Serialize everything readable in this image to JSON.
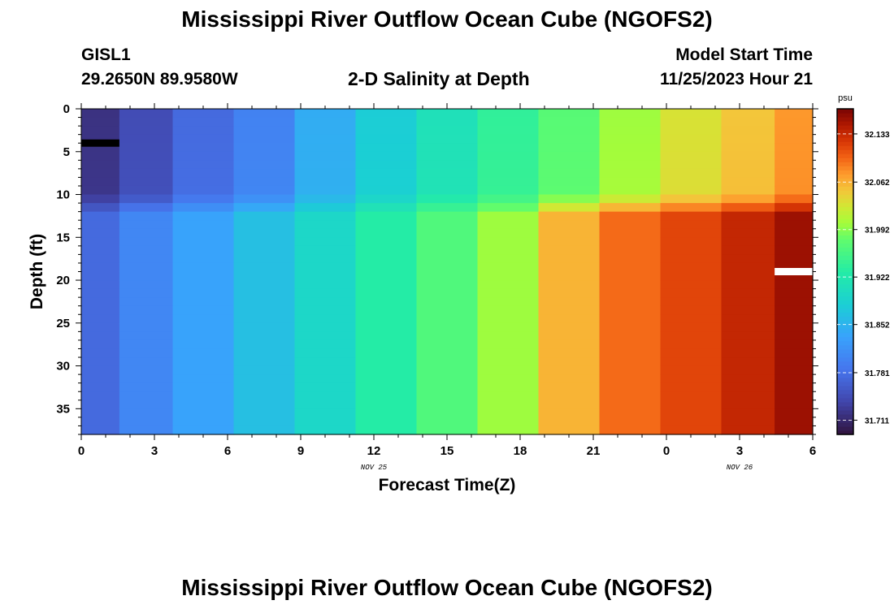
{
  "page": {
    "title": "Mississippi River Outflow Ocean Cube (NGOFS2)",
    "footer_title": "Mississippi River Outflow Ocean Cube (NGOFS2)",
    "station_id": "GISL1",
    "station_coords": "29.2650N  89.9580W",
    "plot_title": "2-D Salinity at Depth",
    "model_start_label": "Model Start Time",
    "model_start_value": "11/25/2023 Hour 21"
  },
  "chart_data": {
    "type": "heatmap",
    "title": "2-D Salinity at Depth",
    "xlabel": "Forecast Time(Z)",
    "ylabel": "Depth (ft)",
    "x_tick_labels": [
      "0",
      "3",
      "6",
      "9",
      "12",
      "15",
      "18",
      "21",
      "0",
      "3",
      "6"
    ],
    "x_hours": [
      0,
      3,
      6,
      9,
      12,
      15,
      18,
      21,
      24,
      27,
      30
    ],
    "x_range_hours": [
      0,
      30
    ],
    "date_labels": [
      {
        "text": "NOV 25",
        "hour": 12
      },
      {
        "text": "NOV 26",
        "hour": 27
      }
    ],
    "y_ticks": [
      0,
      5,
      10,
      15,
      20,
      25,
      30,
      35
    ],
    "y_range_ft": [
      0,
      38
    ],
    "y_inverted": true,
    "colorbar": {
      "unit": "psu",
      "ticks": [
        32.133,
        32.062,
        31.992,
        31.922,
        31.852,
        31.781,
        31.711
      ],
      "range": [
        31.69,
        32.17
      ]
    },
    "columns_hours": [
      0.625,
      2.5,
      5,
      7.5,
      10,
      12.5,
      15,
      17.5,
      20,
      22.5,
      25,
      27.5,
      29.375
    ],
    "surface_salinity": [
      31.72,
      31.745,
      31.775,
      31.8,
      31.845,
      31.88,
      31.91,
      31.94,
      31.97,
      32.0,
      32.03,
      32.05,
      32.075
    ],
    "deep_salinity": [
      31.775,
      31.805,
      31.835,
      31.865,
      31.895,
      31.93,
      31.965,
      32.0,
      32.06,
      32.095,
      32.115,
      32.135,
      32.155
    ],
    "transition_depth_ft": [
      10,
      12.5
    ],
    "markers": [
      {
        "hour": 0.625,
        "depth_ft": 4,
        "color": "#000000"
      },
      {
        "hour": 29.375,
        "depth_ft": 19,
        "color": "#ffffff"
      }
    ]
  }
}
